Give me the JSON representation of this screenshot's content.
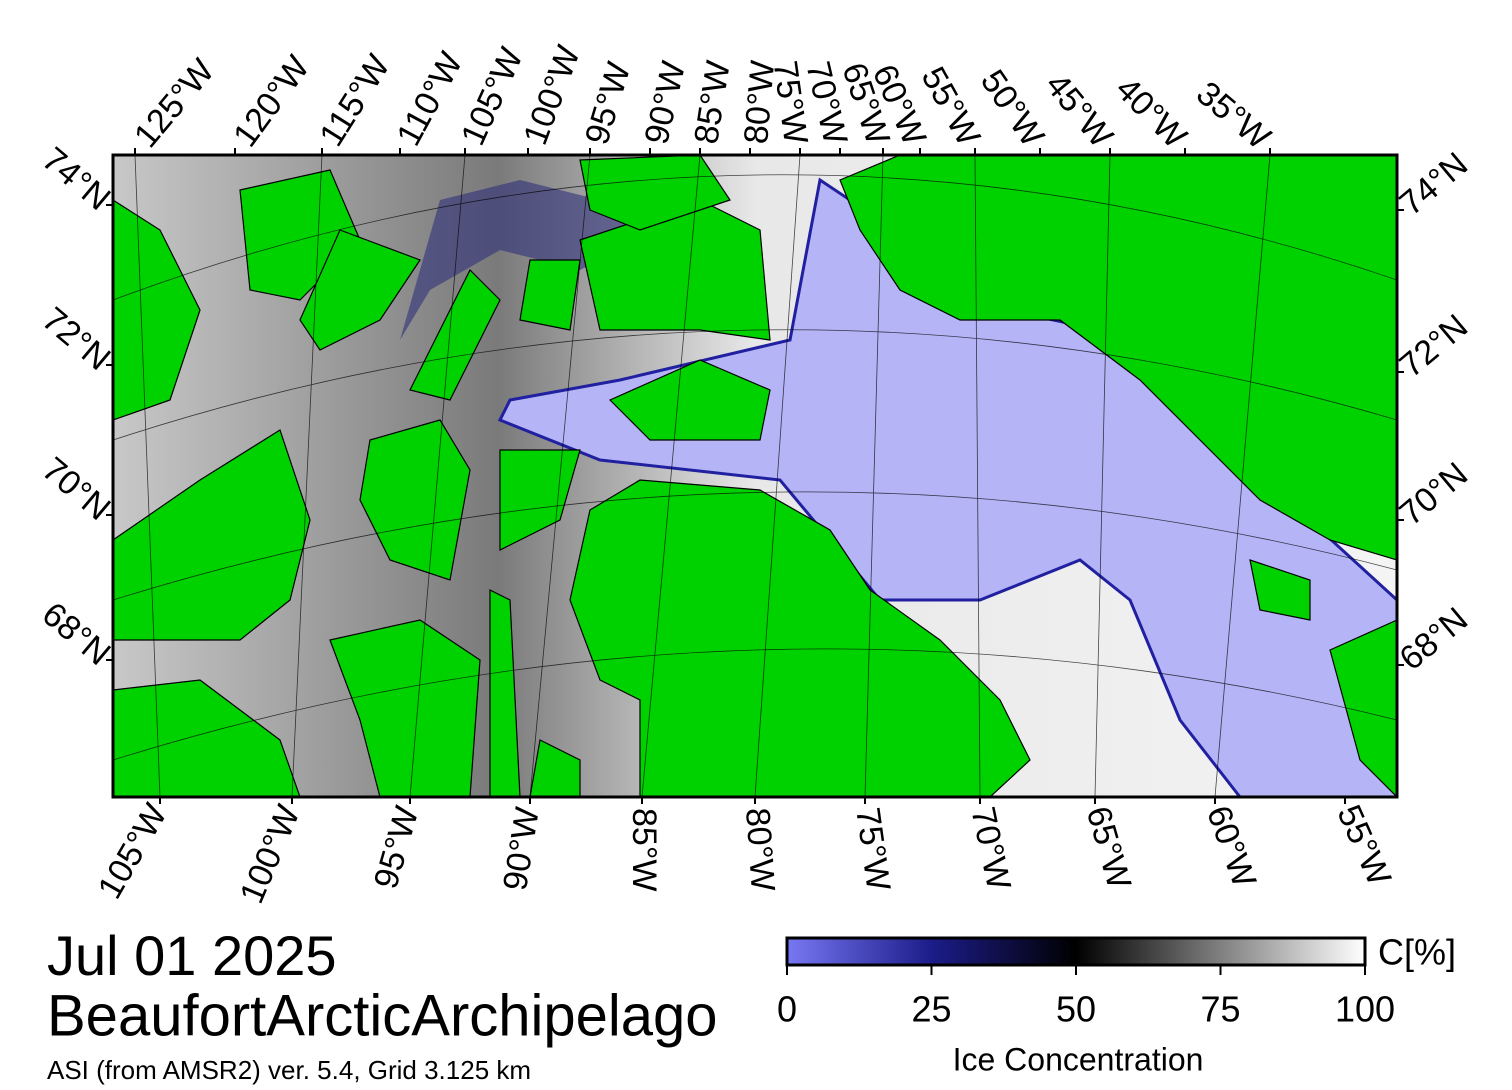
{
  "map": {
    "top_lon_labels": [
      "125°W",
      "120°W",
      "115°W",
      "110°W",
      "105°W",
      "100°W",
      "95°W",
      "90°W",
      "85°W",
      "80°W",
      "75°W",
      "70°W",
      "65°W",
      "60°W",
      "55°W",
      "50°W",
      "45°W",
      "40°W",
      "35°W"
    ],
    "bottom_lon_labels": [
      "105°W",
      "100°W",
      "95°W",
      "90°W",
      "85°W",
      "80°W",
      "75°W",
      "70°W",
      "65°W",
      "60°W",
      "55°W"
    ],
    "left_lat_labels": [
      "74°N",
      "72°N",
      "70°N",
      "68°N"
    ],
    "right_lat_labels": [
      "74°N",
      "72°N",
      "70°N",
      "68°N"
    ],
    "date": "Jul 01 2025",
    "region": "BeaufortArcticArchipelago",
    "product": "ASI (from AMSR2) ver. 5.4,  Grid 3.125 km",
    "colorbar": {
      "unit": "C[%]",
      "label": "Ice Concentration",
      "lim": [
        0,
        100
      ],
      "ticks": [
        0,
        25,
        50,
        75,
        100
      ]
    }
  }
}
